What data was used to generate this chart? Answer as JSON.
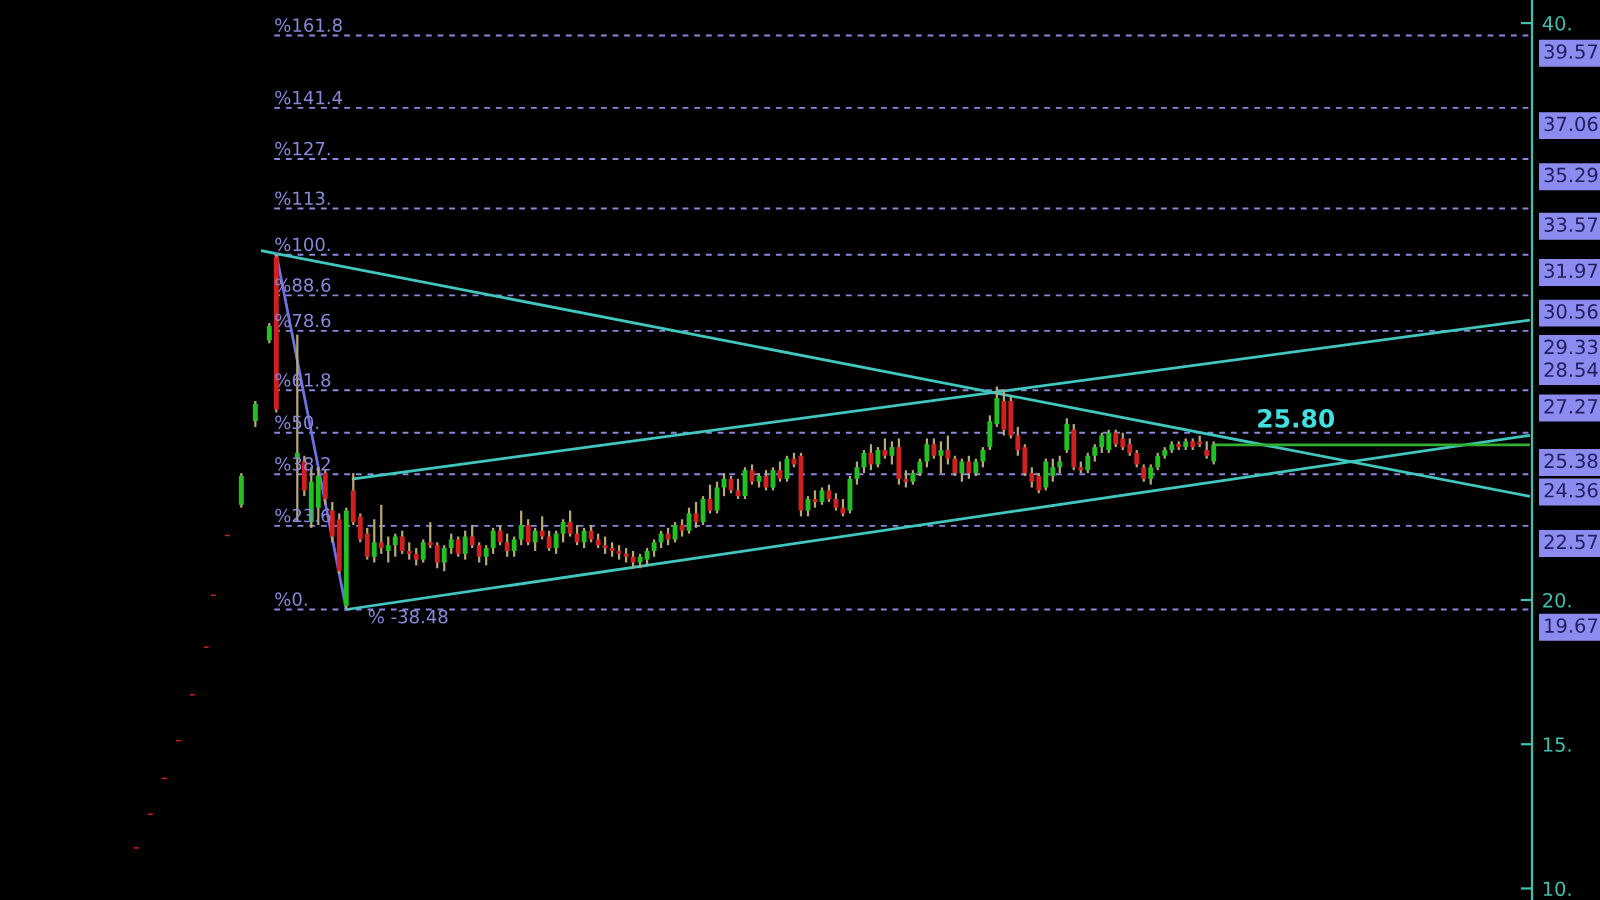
{
  "chart_data": {
    "type": "candlestick",
    "categories": [
      null,
      null,
      null,
      null,
      null,
      null,
      null,
      null,
      null,
      null,
      null,
      null,
      null,
      null,
      null,
      null,
      null,
      null,
      null,
      null,
      null,
      null,
      null,
      null,
      null,
      null,
      null,
      null,
      null,
      null,
      null,
      null,
      null,
      null,
      null,
      null,
      null,
      null,
      null,
      null,
      null,
      null,
      null,
      null,
      null,
      null,
      null,
      null,
      null,
      null,
      null,
      null,
      null,
      null,
      null,
      null,
      null,
      null,
      null,
      null,
      null,
      null,
      null,
      null,
      null,
      null,
      null,
      null,
      null,
      null,
      null,
      null,
      null,
      null,
      null,
      null,
      null,
      null,
      null,
      null,
      null,
      null,
      null,
      null,
      null,
      null,
      null,
      null,
      null,
      null,
      null,
      null,
      null,
      null,
      null,
      null,
      null,
      null,
      null,
      null,
      null,
      null,
      null,
      null,
      null,
      null,
      null,
      null,
      null,
      null,
      null,
      null,
      null,
      null,
      null,
      null,
      null,
      null,
      null,
      null,
      null,
      null,
      null,
      null,
      null,
      null,
      null,
      null,
      null,
      null,
      null,
      null,
      null,
      null,
      null,
      null,
      null,
      null,
      null,
      null,
      null,
      null,
      null,
      null,
      null,
      null,
      null,
      null,
      null,
      null,
      null,
      null,
      null,
      null,
      null,
      null,
      null,
      null,
      null,
      null,
      null,
      null,
      null,
      null,
      null,
      null,
      null,
      null,
      null,
      null,
      null,
      null,
      null,
      null,
      null,
      null,
      null,
      null,
      null,
      null,
      null,
      null,
      null,
      null,
      null,
      null,
      null,
      null,
      null,
      null,
      null,
      null,
      null,
      null,
      null,
      null,
      null,
      null,
      null,
      null,
      null,
      null,
      null,
      null,
      null,
      null,
      null,
      null,
      null,
      null,
      null,
      null,
      null,
      null,
      null,
      null,
      null,
      null,
      null
    ],
    "ohlc": [
      null,
      null,
      null,
      null,
      null,
      null,
      null,
      null,
      null,
      null,
      null,
      null,
      null,
      null,
      null,
      null,
      null,
      null,
      null,
      [
        11.43,
        11.43,
        11.38,
        11.38
      ],
      null,
      [
        12.6,
        12.6,
        12.55,
        12.55
      ],
      null,
      [
        13.84,
        13.84,
        13.79,
        13.79
      ],
      null,
      [
        15.15,
        15.15,
        15.1,
        15.1
      ],
      null,
      [
        16.74,
        16.74,
        16.69,
        16.69
      ],
      null,
      [
        18.39,
        18.39,
        18.34,
        18.34
      ],
      [
        20.19,
        20.19,
        20.14,
        20.14
      ],
      null,
      [
        22.26,
        22.26,
        22.21,
        22.21
      ],
      null,
      [
        23.3,
        24.4,
        23.2,
        24.3
      ],
      null,
      [
        26.2,
        26.9,
        26.0,
        26.8
      ],
      null,
      [
        29.0,
        29.6,
        28.9,
        29.5
      ],
      [
        31.9,
        32.0,
        26.5,
        26.6
      ],
      null,
      null,
      [
        24.9,
        29.2,
        22.7,
        25.1
      ],
      [
        24.8,
        25.0,
        23.6,
        23.8
      ],
      [
        22.7,
        24.6,
        22.5,
        24.1
      ],
      [
        23.2,
        24.6,
        22.6,
        24.3
      ],
      [
        24.4,
        24.5,
        23.3,
        23.5
      ],
      [
        23.1,
        23.4,
        22.0,
        22.2
      ],
      [
        22.8,
        23.0,
        20.9,
        21.0
      ],
      [
        19.8,
        23.2,
        19.67,
        23.1
      ],
      [
        23.8,
        24.4,
        22.6,
        22.7
      ],
      [
        22.9,
        23.0,
        22.0,
        22.1
      ],
      [
        22.3,
        22.5,
        21.4,
        21.5
      ],
      [
        21.5,
        22.8,
        21.3,
        22.0
      ],
      [
        22.0,
        23.3,
        21.6,
        21.8
      ],
      [
        21.7,
        22.2,
        21.3,
        21.9
      ],
      [
        21.9,
        22.3,
        21.5,
        22.2
      ],
      [
        22.2,
        22.4,
        21.6,
        21.7
      ],
      [
        21.7,
        22.0,
        21.4,
        21.6
      ],
      [
        21.6,
        21.8,
        21.2,
        21.4
      ],
      [
        21.4,
        22.1,
        21.3,
        22.0
      ],
      [
        22.0,
        22.7,
        21.8,
        21.9
      ],
      [
        21.9,
        22.0,
        21.1,
        21.3
      ],
      [
        21.3,
        21.9,
        21.0,
        21.8
      ],
      [
        21.8,
        22.3,
        21.6,
        22.1
      ],
      [
        22.1,
        22.2,
        21.5,
        21.6
      ],
      [
        21.6,
        22.4,
        21.4,
        22.2
      ],
      [
        22.2,
        22.6,
        21.8,
        21.9
      ],
      [
        21.9,
        22.0,
        21.3,
        21.5
      ],
      [
        21.5,
        21.9,
        21.2,
        21.8
      ],
      [
        21.8,
        22.5,
        21.6,
        22.4
      ],
      [
        22.4,
        22.6,
        21.9,
        22.0
      ],
      [
        22.0,
        22.3,
        21.5,
        21.7
      ],
      [
        21.7,
        22.2,
        21.5,
        22.1
      ],
      [
        22.1,
        23.1,
        21.9,
        22.6
      ],
      [
        22.6,
        22.8,
        21.9,
        22.0
      ],
      [
        22.0,
        22.5,
        21.7,
        22.4
      ],
      [
        22.4,
        22.9,
        22.1,
        22.2
      ],
      [
        22.2,
        22.4,
        21.7,
        21.8
      ],
      [
        21.8,
        22.4,
        21.6,
        22.3
      ],
      [
        22.3,
        22.8,
        22.0,
        22.7
      ],
      [
        22.7,
        23.1,
        22.2,
        22.3
      ],
      [
        22.3,
        22.6,
        21.9,
        22.0
      ],
      [
        22.0,
        22.5,
        21.8,
        22.4
      ],
      [
        22.4,
        22.6,
        22.0,
        22.1
      ],
      [
        22.1,
        22.3,
        21.8,
        21.9
      ],
      [
        21.9,
        22.2,
        21.6,
        21.8
      ],
      [
        21.8,
        22.0,
        21.5,
        21.7
      ],
      [
        21.7,
        21.9,
        21.4,
        21.6
      ],
      [
        21.6,
        21.8,
        21.3,
        21.5
      ],
      [
        21.5,
        21.7,
        21.1,
        21.3
      ],
      [
        21.3,
        21.6,
        21.1,
        21.5
      ],
      [
        21.4,
        21.8,
        21.2,
        21.7
      ],
      [
        21.7,
        22.1,
        21.5,
        22.0
      ],
      [
        22.0,
        22.4,
        21.8,
        22.3
      ],
      [
        22.3,
        22.5,
        21.9,
        22.1
      ],
      [
        22.1,
        22.7,
        22.0,
        22.6
      ],
      [
        22.6,
        22.8,
        22.2,
        22.4
      ],
      [
        22.4,
        23.2,
        22.3,
        23.0
      ],
      [
        23.0,
        23.4,
        22.5,
        22.7
      ],
      [
        22.7,
        23.6,
        22.6,
        23.5
      ],
      [
        23.5,
        24.0,
        23.0,
        23.1
      ],
      [
        23.1,
        24.1,
        23.0,
        23.9
      ],
      [
        23.9,
        24.4,
        23.6,
        24.2
      ],
      [
        24.2,
        24.3,
        23.7,
        23.8
      ],
      [
        23.8,
        24.2,
        23.5,
        23.6
      ],
      [
        23.6,
        24.6,
        23.5,
        24.5
      ],
      [
        24.5,
        24.7,
        24.0,
        24.1
      ],
      [
        24.1,
        24.4,
        23.9,
        24.3
      ],
      [
        24.3,
        24.5,
        23.8,
        23.9
      ],
      [
        23.9,
        24.6,
        23.8,
        24.5
      ],
      [
        24.5,
        24.8,
        24.1,
        24.2
      ],
      [
        24.2,
        25.0,
        24.1,
        24.9
      ],
      [
        24.9,
        25.1,
        24.6,
        24.7
      ],
      [
        25.0,
        25.1,
        22.9,
        23.1
      ],
      [
        23.1,
        23.6,
        22.9,
        23.5
      ],
      [
        23.5,
        23.8,
        23.2,
        23.4
      ],
      [
        23.4,
        23.9,
        23.3,
        23.8
      ],
      [
        23.8,
        24.0,
        23.4,
        23.5
      ],
      [
        23.5,
        23.7,
        23.1,
        23.2
      ],
      [
        23.2,
        23.5,
        22.9,
        23.0
      ],
      [
        23.1,
        24.3,
        23.0,
        24.2
      ],
      [
        24.2,
        24.8,
        24.0,
        24.6
      ],
      [
        24.6,
        25.2,
        24.4,
        25.1
      ],
      [
        25.1,
        25.4,
        24.5,
        24.7
      ],
      [
        24.7,
        25.3,
        24.6,
        25.2
      ],
      [
        25.2,
        25.6,
        24.9,
        25.0
      ],
      [
        25.0,
        25.5,
        24.7,
        25.3
      ],
      [
        25.3,
        25.6,
        24.0,
        24.2
      ],
      [
        24.2,
        24.5,
        23.9,
        24.1
      ],
      [
        24.1,
        24.5,
        24.0,
        24.4
      ],
      [
        24.4,
        24.9,
        24.3,
        24.8
      ],
      [
        24.8,
        25.6,
        24.6,
        25.4
      ],
      [
        25.4,
        25.6,
        24.9,
        25.0
      ],
      [
        25.0,
        25.5,
        24.4,
        25.2
      ],
      [
        25.2,
        25.7,
        24.7,
        24.9
      ],
      [
        24.9,
        25.0,
        24.3,
        24.4
      ],
      [
        24.4,
        24.9,
        24.1,
        24.8
      ],
      [
        24.8,
        25.0,
        24.2,
        24.4
      ],
      [
        24.4,
        24.9,
        24.3,
        24.8
      ],
      [
        24.8,
        25.3,
        24.6,
        25.2
      ],
      [
        25.3,
        26.4,
        25.2,
        26.2
      ],
      [
        26.1,
        27.4,
        26.0,
        27.0
      ],
      [
        26.9,
        27.3,
        25.7,
        25.9
      ],
      [
        26.9,
        27.1,
        25.6,
        25.7
      ],
      [
        25.7,
        26.0,
        25.0,
        25.2
      ],
      [
        25.3,
        25.4,
        24.3,
        24.4
      ],
      [
        24.4,
        24.6,
        23.9,
        24.1
      ],
      [
        24.3,
        24.4,
        23.7,
        23.8
      ],
      [
        23.9,
        24.9,
        23.8,
        24.8
      ],
      [
        24.3,
        24.9,
        24.1,
        24.6
      ],
      [
        24.6,
        25.0,
        24.4,
        24.8
      ],
      [
        25.2,
        26.3,
        25.1,
        26.1
      ],
      [
        25.9,
        26.1,
        24.5,
        24.6
      ],
      [
        24.6,
        24.8,
        24.4,
        24.5
      ],
      [
        24.5,
        25.1,
        24.4,
        25.0
      ],
      [
        25.0,
        25.4,
        24.8,
        25.3
      ],
      [
        25.3,
        25.8,
        25.1,
        25.7
      ],
      [
        25.2,
        25.9,
        25.1,
        25.8
      ],
      [
        25.8,
        25.9,
        25.3,
        25.4
      ],
      [
        25.6,
        25.8,
        25.2,
        25.3
      ],
      [
        25.4,
        25.6,
        25.0,
        25.1
      ],
      [
        25.1,
        25.2,
        24.6,
        24.7
      ],
      [
        24.6,
        24.7,
        24.1,
        24.2
      ],
      [
        24.2,
        24.7,
        24.0,
        24.6
      ],
      [
        24.6,
        25.1,
        24.5,
        25.0
      ],
      [
        25.0,
        25.3,
        24.9,
        25.2
      ],
      [
        25.2,
        25.5,
        25.1,
        25.4
      ],
      [
        25.4,
        25.5,
        25.2,
        25.3
      ],
      [
        25.3,
        25.6,
        25.2,
        25.5
      ],
      [
        25.5,
        25.6,
        25.2,
        25.3
      ],
      [
        25.5,
        25.7,
        25.3,
        25.4
      ],
      [
        25.2,
        25.5,
        24.9,
        25.0
      ],
      [
        24.8,
        25.5,
        24.7,
        25.38
      ],
      null,
      null,
      null,
      null,
      null,
      null,
      null,
      null,
      null,
      null,
      null,
      null,
      null,
      null,
      null,
      null,
      null,
      null,
      null,
      null,
      null,
      null,
      null,
      null,
      null,
      null,
      null,
      null,
      null,
      null,
      null,
      null,
      null,
      null,
      null,
      null,
      null,
      null,
      null,
      null,
      null,
      null,
      null,
      null,
      null
    ],
    "series": [
      {
        "type": "line",
        "color": "#40c8c0",
        "values": [
          null,
          null,
          null,
          null,
          null,
          null,
          null,
          null,
          null,
          null,
          null,
          null,
          null,
          null,
          null,
          null,
          null,
          null,
          null,
          null,
          null,
          null,
          null,
          null,
          null,
          null,
          null,
          null,
          null,
          null,
          null,
          null,
          null,
          null,
          null,
          null,
          null,
          null,
          null,
          null,
          null,
          null,
          null,
          null,
          null,
          null,
          null,
          null,
          null,
          null,
          24.2,
          null,
          null,
          null,
          null,
          null,
          null,
          null,
          null,
          null,
          null,
          null,
          null,
          null,
          null,
          null,
          null,
          null,
          null,
          null,
          null,
          null,
          null,
          null,
          null,
          null,
          null,
          null,
          null,
          null,
          null,
          null,
          null,
          null,
          null,
          null,
          null,
          null,
          null,
          null,
          null,
          null,
          null,
          null,
          null,
          null,
          null,
          null,
          null,
          null,
          null,
          null,
          null,
          null,
          null,
          null,
          null,
          null,
          null,
          null,
          null,
          null,
          null,
          null,
          null,
          null,
          null,
          null,
          null,
          null,
          null,
          null,
          null,
          null,
          null,
          null,
          null,
          null,
          null,
          null,
          null,
          null,
          null,
          null,
          null,
          null,
          null,
          null,
          null,
          null,
          null,
          null,
          null,
          null,
          null,
          null,
          null,
          null,
          null,
          null,
          null,
          null,
          null,
          null,
          null,
          null,
          null,
          null,
          null,
          null,
          null,
          null,
          null,
          null,
          null,
          null,
          null,
          null,
          null,
          null,
          null,
          null,
          null,
          null,
          null,
          null,
          null,
          null,
          null,
          null,
          null,
          null,
          null,
          null,
          null,
          null,
          null,
          null,
          null,
          null,
          null,
          null,
          null,
          null,
          null,
          null,
          null,
          null,
          null,
          null,
          null,
          null,
          null,
          null,
          null,
          null,
          null,
          null,
          null,
          null,
          null,
          null,
          null,
          null,
          null,
          null,
          null,
          null,
          29.7
        ]
      },
      {
        "type": "line",
        "color": "#40c8c0",
        "values": [
          null,
          null,
          null,
          null,
          null,
          null,
          null,
          null,
          null,
          null,
          null,
          null,
          null,
          null,
          null,
          null,
          null,
          null,
          null,
          null,
          null,
          null,
          null,
          null,
          null,
          null,
          null,
          null,
          null,
          null,
          null,
          null,
          null,
          null,
          null,
          null,
          null,
          null,
          null,
          null,
          null,
          null,
          null,
          null,
          null,
          null,
          null,
          null,
          null,
          19.67,
          null,
          null,
          null,
          null,
          null,
          null,
          null,
          null,
          null,
          null,
          null,
          null,
          null,
          null,
          null,
          null,
          null,
          null,
          null,
          null,
          null,
          null,
          null,
          null,
          null,
          null,
          null,
          null,
          null,
          null,
          null,
          null,
          null,
          null,
          null,
          null,
          null,
          null,
          null,
          null,
          null,
          null,
          null,
          null,
          null,
          null,
          null,
          null,
          null,
          null,
          null,
          null,
          null,
          null,
          null,
          null,
          null,
          null,
          null,
          null,
          null,
          null,
          null,
          null,
          null,
          null,
          null,
          null,
          null,
          null,
          null,
          null,
          null,
          null,
          null,
          null,
          null,
          null,
          null,
          null,
          null,
          null,
          null,
          null,
          null,
          null,
          null,
          null,
          null,
          null,
          null,
          null,
          null,
          null,
          null,
          null,
          null,
          null,
          null,
          null,
          null,
          null,
          null,
          null,
          null,
          null,
          null,
          null,
          null,
          null,
          null,
          null,
          null,
          null,
          null,
          null,
          null,
          null,
          null,
          null,
          null,
          null,
          null,
          null,
          null,
          null,
          null,
          null,
          null,
          null,
          null,
          null,
          null,
          null,
          null,
          null,
          null,
          null,
          null,
          null,
          null,
          null,
          null,
          null,
          null,
          null,
          null,
          null,
          null,
          null,
          null,
          null,
          null,
          null,
          null,
          null,
          null,
          null,
          null,
          null,
          null,
          null,
          null,
          null,
          null,
          null,
          null,
          null,
          25.7
        ]
      },
      {
        "type": "line",
        "color": "#40c8c0",
        "values": [
          null,
          null,
          null,
          null,
          null,
          null,
          null,
          null,
          null,
          null,
          null,
          null,
          null,
          null,
          null,
          null,
          null,
          null,
          null,
          null,
          null,
          null,
          null,
          null,
          null,
          null,
          null,
          null,
          null,
          null,
          null,
          null,
          null,
          null,
          null,
          null,
          null,
          32.1,
          null,
          null,
          null,
          null,
          null,
          null,
          null,
          null,
          null,
          null,
          null,
          null,
          null,
          null,
          null,
          null,
          null,
          null,
          null,
          null,
          null,
          null,
          null,
          null,
          null,
          null,
          null,
          null,
          null,
          null,
          null,
          null,
          null,
          null,
          null,
          null,
          null,
          null,
          null,
          null,
          null,
          null,
          null,
          null,
          null,
          null,
          null,
          null,
          null,
          null,
          null,
          null,
          null,
          null,
          null,
          null,
          null,
          null,
          null,
          null,
          null,
          null,
          null,
          null,
          null,
          null,
          null,
          null,
          null,
          null,
          null,
          null,
          null,
          null,
          null,
          null,
          null,
          null,
          null,
          null,
          null,
          null,
          null,
          null,
          null,
          null,
          null,
          null,
          null,
          null,
          null,
          null,
          null,
          null,
          null,
          null,
          null,
          null,
          null,
          null,
          null,
          null,
          null,
          null,
          null,
          null,
          null,
          null,
          null,
          null,
          null,
          null,
          null,
          null,
          null,
          null,
          null,
          null,
          null,
          null,
          null,
          null,
          null,
          null,
          null,
          null,
          null,
          null,
          null,
          null,
          null,
          null,
          null,
          null,
          null,
          null,
          null,
          null,
          null,
          null,
          null,
          null,
          null,
          null,
          null,
          null,
          null,
          null,
          null,
          null,
          null,
          null,
          null,
          null,
          null,
          null,
          null,
          null,
          null,
          null,
          null,
          null,
          null,
          null,
          null,
          null,
          null,
          null,
          null,
          null,
          null,
          null,
          null,
          null,
          null,
          null,
          null,
          null,
          null,
          null,
          23.6
        ]
      },
      {
        "type": "line",
        "color": "#7070e0",
        "values": [
          null,
          null,
          null,
          null,
          null,
          null,
          null,
          null,
          null,
          null,
          null,
          null,
          null,
          null,
          null,
          null,
          null,
          null,
          null,
          null,
          null,
          null,
          null,
          null,
          null,
          null,
          null,
          null,
          null,
          null,
          null,
          null,
          null,
          null,
          null,
          null,
          null,
          null,
          null,
          32.0,
          null,
          null,
          null,
          null,
          null,
          null,
          null,
          null,
          null,
          19.67,
          null,
          null,
          null,
          null,
          null,
          null,
          null,
          null,
          null,
          null,
          null,
          null,
          null,
          null,
          null,
          null,
          null,
          null,
          null,
          null,
          null,
          null,
          null,
          null,
          null,
          null,
          null,
          null,
          null,
          null,
          null,
          null,
          null,
          null,
          null,
          null,
          null,
          null,
          null,
          null,
          null,
          null,
          null,
          null,
          null,
          null,
          null,
          null,
          null,
          null,
          null,
          null,
          null,
          null,
          null,
          null,
          null,
          null,
          null,
          null,
          null,
          null,
          null,
          null,
          null,
          null,
          null,
          null,
          null,
          null,
          null,
          null,
          null,
          null,
          null,
          null,
          null,
          null,
          null,
          null,
          null,
          null,
          null,
          null,
          null,
          null,
          null,
          null,
          null,
          null,
          null,
          null,
          null,
          null,
          null,
          null,
          null,
          null,
          null,
          null,
          null,
          null,
          null,
          null,
          null,
          null,
          null,
          null,
          null,
          null,
          null,
          null,
          null,
          null,
          null,
          null,
          null,
          null,
          null,
          null,
          null,
          null,
          null,
          null,
          null,
          null,
          null,
          null,
          null,
          null,
          null,
          null,
          null,
          null,
          null,
          null,
          null,
          null,
          null,
          null,
          null,
          null,
          null,
          null,
          null,
          null,
          null,
          null,
          null,
          null,
          null,
          null,
          null,
          null,
          null,
          null,
          null,
          null,
          null,
          null,
          null,
          null,
          null,
          null,
          null,
          null,
          null,
          null,
          null
        ]
      },
      {
        "type": "line",
        "color": "#30b030",
        "values": [
          null,
          null,
          null,
          null,
          null,
          null,
          null,
          null,
          null,
          null,
          null,
          null,
          null,
          null,
          null,
          null,
          null,
          null,
          null,
          null,
          null,
          null,
          null,
          null,
          null,
          null,
          null,
          null,
          null,
          null,
          null,
          null,
          null,
          null,
          null,
          null,
          null,
          null,
          null,
          null,
          null,
          null,
          null,
          null,
          null,
          null,
          null,
          null,
          null,
          null,
          null,
          null,
          null,
          null,
          null,
          null,
          null,
          null,
          null,
          null,
          null,
          null,
          null,
          null,
          null,
          null,
          null,
          null,
          null,
          null,
          null,
          null,
          null,
          null,
          null,
          null,
          null,
          null,
          null,
          null,
          null,
          null,
          null,
          null,
          null,
          null,
          null,
          null,
          null,
          null,
          null,
          null,
          null,
          null,
          null,
          null,
          null,
          null,
          null,
          null,
          null,
          null,
          null,
          null,
          null,
          null,
          null,
          null,
          null,
          null,
          null,
          null,
          null,
          null,
          null,
          null,
          null,
          null,
          null,
          null,
          null,
          null,
          null,
          null,
          null,
          null,
          null,
          null,
          null,
          null,
          null,
          null,
          null,
          null,
          null,
          null,
          null,
          null,
          null,
          null,
          null,
          null,
          null,
          null,
          null,
          null,
          null,
          null,
          null,
          null,
          null,
          null,
          null,
          null,
          null,
          null,
          null,
          null,
          null,
          null,
          null,
          null,
          null,
          null,
          null,
          null,
          null,
          null,
          null,
          null,
          null,
          null,
          null,
          25.38,
          null,
          null,
          null,
          null,
          null,
          null,
          null,
          null,
          null,
          null,
          null,
          null,
          null,
          null,
          null,
          null,
          null,
          null,
          null,
          null,
          null,
          null,
          null,
          null,
          null,
          null,
          null,
          null,
          null,
          null,
          null,
          null,
          null,
          null,
          null,
          null,
          null,
          null,
          null,
          null,
          null,
          null,
          null,
          null,
          25.38
        ]
      }
    ],
    "ylim": [
      9.6,
      40.8
    ],
    "yticks": [
      {
        "value": 10,
        "label": "10."
      },
      {
        "value": 15,
        "label": "15."
      },
      {
        "value": 20,
        "label": "20."
      },
      {
        "value": 40,
        "label": "40."
      }
    ],
    "y2lim": [
      9.6,
      40.8
    ],
    "y2ticks": [
      {
        "value": 39.57,
        "label": "39.57"
      },
      {
        "value": 37.06,
        "label": "37.06"
      },
      {
        "value": 35.29,
        "label": "35.29"
      },
      {
        "value": 33.57,
        "label": "33.57"
      },
      {
        "value": 31.97,
        "label": "31.97"
      },
      {
        "value": 30.56,
        "label": "30.56"
      },
      {
        "value": 29.33,
        "label": "29.33"
      },
      {
        "value": 28.54,
        "label": "28.54"
      },
      {
        "value": 27.27,
        "label": "27.27"
      },
      {
        "value": 25.38,
        "label": "25.38"
      },
      {
        "value": 24.36,
        "label": "24.36"
      },
      {
        "value": 22.57,
        "label": "22.57"
      },
      {
        "value": 19.67,
        "label": "19.67"
      }
    ],
    "ref_lines": [
      {
        "axis": "y",
        "value": 39.57,
        "color": "#8888dd",
        "line_style": "dashed"
      },
      {
        "axis": "y",
        "value": 37.06,
        "color": "#8888dd",
        "line_style": "dashed"
      },
      {
        "axis": "y",
        "value": 35.29,
        "color": "#8888dd",
        "line_style": "dashed"
      },
      {
        "axis": "y",
        "value": 33.57,
        "color": "#8888dd",
        "line_style": "dashed"
      },
      {
        "axis": "y",
        "value": 31.97,
        "color": "#8888dd",
        "line_style": "dashed"
      },
      {
        "axis": "y",
        "value": 30.56,
        "color": "#8888dd",
        "line_style": "dashed"
      },
      {
        "axis": "y",
        "value": 29.33,
        "color": "#8888dd",
        "line_style": "dashed"
      },
      {
        "axis": "y",
        "value": 27.27,
        "color": "#8888dd",
        "line_style": "dashed"
      },
      {
        "axis": "y",
        "value": 25.8,
        "color": "#8888dd",
        "line_style": "dashed"
      },
      {
        "axis": "y",
        "value": 24.36,
        "color": "#8888dd",
        "line_style": "dashed"
      },
      {
        "axis": "y",
        "value": 22.57,
        "color": "#8888dd",
        "line_style": "dashed"
      },
      {
        "axis": "y",
        "value": 19.67,
        "color": "#8888dd",
        "line_style": "dashed"
      }
    ],
    "annotations": [
      {
        "text": "25.80",
        "y": 25.8
      },
      {
        "text": "% -38.48",
        "y": 19.67
      },
      {
        "text": "%161.8",
        "y": 39.57
      },
      {
        "text": "%141.4",
        "y": 37.06
      },
      {
        "text": "%127.",
        "y": 35.29
      },
      {
        "text": "%113.",
        "y": 33.57
      },
      {
        "text": "%100.",
        "y": 31.97
      },
      {
        "text": "%88.6",
        "y": 30.56
      },
      {
        "text": "%78.6",
        "y": 29.33
      },
      {
        "text": "%61.8",
        "y": 27.27
      },
      {
        "text": "%50.",
        "y": 25.8
      },
      {
        "text": "%38.2",
        "y": 24.36
      },
      {
        "text": "%23.6",
        "y": 22.57
      },
      {
        "text": "%0.",
        "y": 19.67
      }
    ],
    "tick_labels": "y"
  }
}
